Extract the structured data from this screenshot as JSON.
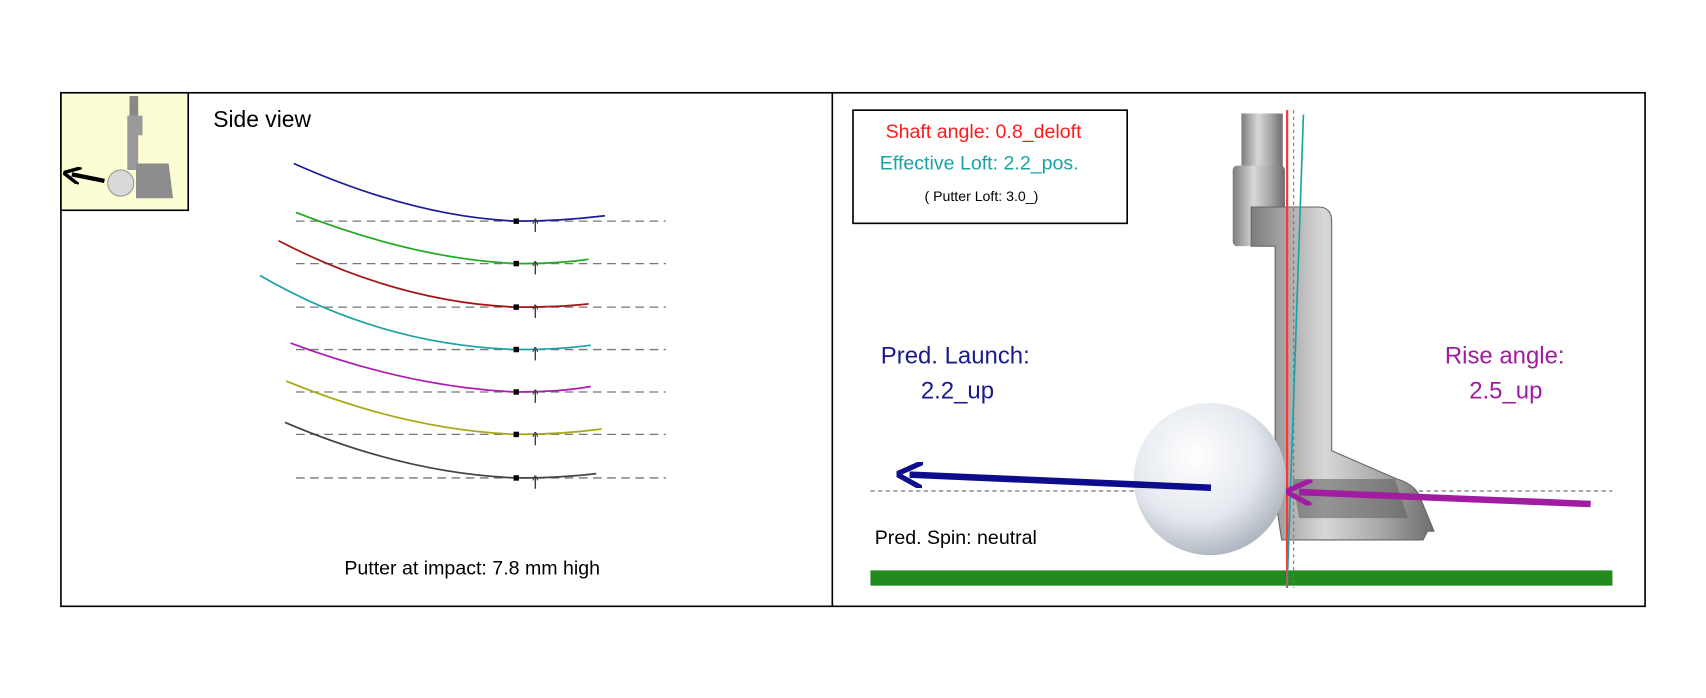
{
  "left_panel": {
    "title": "Side view",
    "caption": "Putter at impact:  7.8 mm high"
  },
  "right_panel": {
    "shaft_angle": "Shaft angle: 0.8_deloft",
    "effective_loft": "Effective Loft: 2.2_pos.",
    "putter_loft": "( Putter Loft: 3.0_)",
    "launch_label": "Pred. Launch:",
    "launch_value": "2.2_up",
    "rise_label": "Rise angle:",
    "rise_value": "2.5_up",
    "spin": "Pred. Spin: neutral"
  }
}
